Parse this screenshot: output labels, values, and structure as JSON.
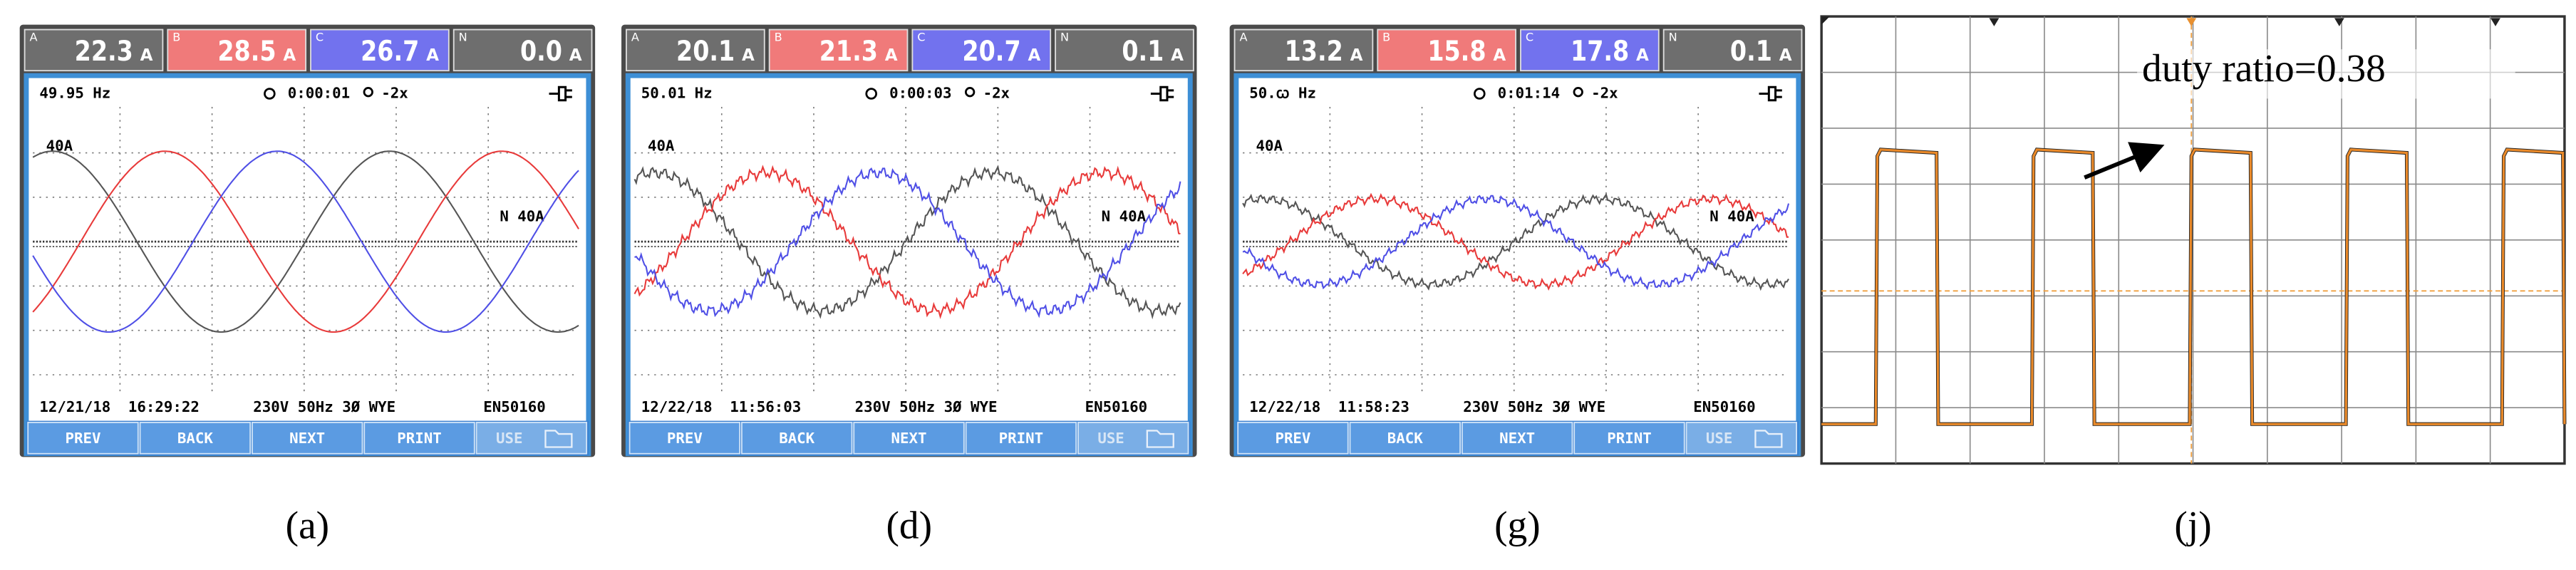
{
  "panels": [
    {
      "label": "(a)",
      "readings": [
        {
          "phase": "A",
          "value": "22.3",
          "unit": "A"
        },
        {
          "phase": "B",
          "value": "28.5",
          "unit": "A"
        },
        {
          "phase": "C",
          "value": "26.7",
          "unit": "A"
        },
        {
          "phase": "N",
          "value": "0.0",
          "unit": "A"
        }
      ],
      "frequency": "49.95 Hz",
      "timer": "0:00:01",
      "zoom": "-2x",
      "scale_label": "40A",
      "n_label": "N 40A",
      "date": "12/21/18",
      "time": "16:29:22",
      "status": "230V 50Hz 3Ø WYE",
      "standard": "EN50160",
      "buttons": [
        "PREV",
        "BACK",
        "NEXT",
        "PRINT",
        "USE"
      ]
    },
    {
      "label": "(d)",
      "readings": [
        {
          "phase": "A",
          "value": "20.1",
          "unit": "A"
        },
        {
          "phase": "B",
          "value": "21.3",
          "unit": "A"
        },
        {
          "phase": "C",
          "value": "20.7",
          "unit": "A"
        },
        {
          "phase": "N",
          "value": "0.1",
          "unit": "A"
        }
      ],
      "frequency": "50.01 Hz",
      "timer": "0:00:03",
      "zoom": "-2x",
      "scale_label": "40A",
      "n_label": "N 40A",
      "date": "12/22/18",
      "time": "11:56:03",
      "status": "230V 50Hz 3Ø WYE",
      "standard": "EN50160",
      "buttons": [
        "PREV",
        "BACK",
        "NEXT",
        "PRINT",
        "USE"
      ]
    },
    {
      "label": "(g)",
      "readings": [
        {
          "phase": "A",
          "value": "13.2",
          "unit": "A"
        },
        {
          "phase": "B",
          "value": "15.8",
          "unit": "A"
        },
        {
          "phase": "C",
          "value": "17.8",
          "unit": "A"
        },
        {
          "phase": "N",
          "value": "0.1",
          "unit": "A"
        }
      ],
      "frequency": "50.ꞷ Hz",
      "timer": "0:01:14",
      "zoom": "-2x",
      "scale_label": "40A",
      "n_label": "N 40A",
      "date": "12/22/18",
      "time": "11:58:23",
      "status": "230V 50Hz 3Ø WYE",
      "standard": "EN50160",
      "buttons": [
        "PREV",
        "BACK",
        "NEXT",
        "PRINT",
        "USE"
      ]
    }
  ],
  "scope": {
    "label": "(j)",
    "annotation": "duty ratio=0.38"
  }
}
